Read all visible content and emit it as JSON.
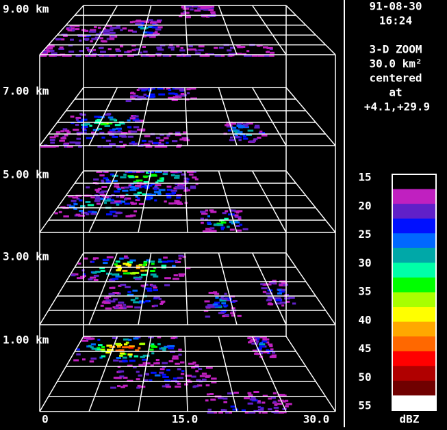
{
  "header": {
    "date": "91-08-30",
    "time": "16:24",
    "mode": "3-D ZOOM",
    "area": "30.0 km²",
    "centered": "centered",
    "at": "at",
    "coords": "+4.1,+29.9"
  },
  "levels": [
    "9.00 km",
    "7.00 km",
    "5.00 km",
    "3.00 km",
    "1.00 km"
  ],
  "x_axis": {
    "ticks": [
      "0",
      "15.0",
      "30.0"
    ]
  },
  "colorbar": {
    "ticks": [
      15,
      20,
      25,
      30,
      35,
      40,
      45,
      50,
      55
    ],
    "unit": "dBZ",
    "colors": [
      "#000000",
      "#c020c0",
      "#6020c8",
      "#0010ff",
      "#0068ff",
      "#00a8a8",
      "#00ffa8",
      "#00ff00",
      "#a8ff00",
      "#ffff00",
      "#ffa800",
      "#ff6800",
      "#ff0000",
      "#b00000",
      "#700000",
      "#ffffff"
    ]
  }
}
